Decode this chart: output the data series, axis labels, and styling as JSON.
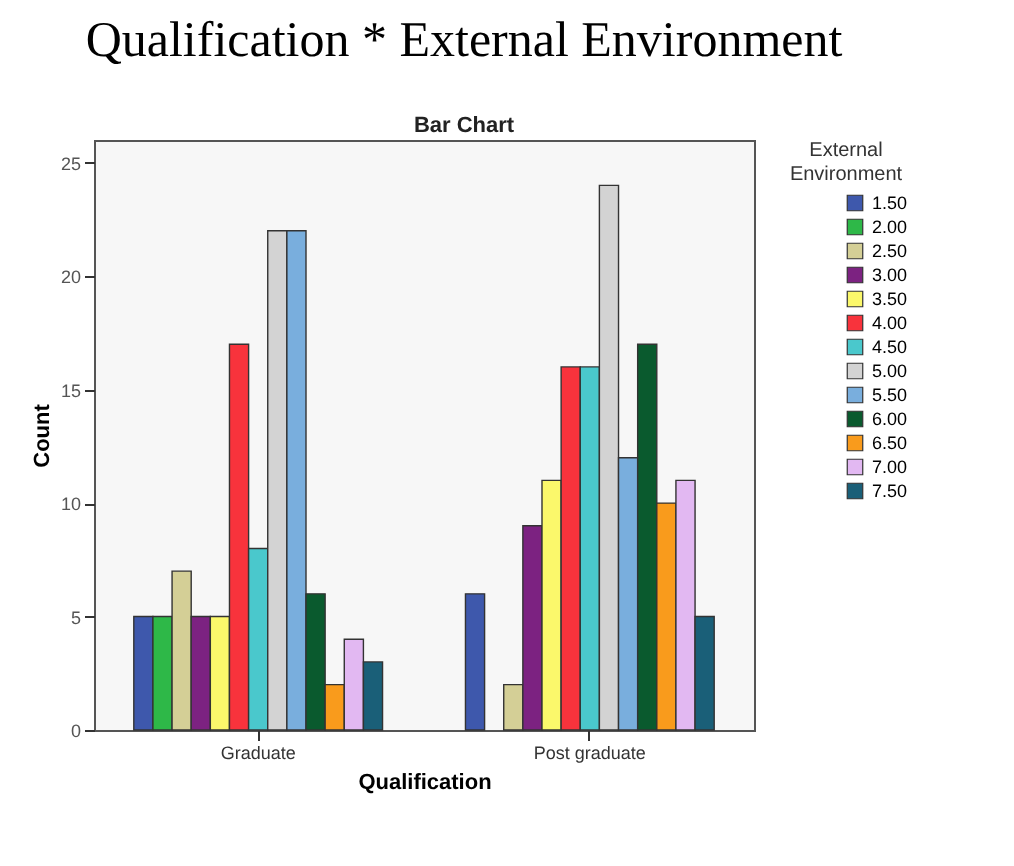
{
  "chart_data": {
    "type": "bar",
    "title": "Qualification  * External  Environment",
    "subtitle": "Bar Chart",
    "xlabel": "Qualification",
    "ylabel": "Count",
    "legend_title": "External Environment",
    "categories": [
      "Graduate",
      "Post graduate"
    ],
    "series": [
      {
        "name": "1.50",
        "color": "#3e58ac",
        "values": [
          5,
          6
        ]
      },
      {
        "name": "2.00",
        "color": "#2eb848",
        "values": [
          5,
          null
        ]
      },
      {
        "name": "2.50",
        "color": "#d4cf96",
        "values": [
          7,
          2
        ]
      },
      {
        "name": "3.00",
        "color": "#7c2281",
        "values": [
          5,
          9
        ]
      },
      {
        "name": "3.50",
        "color": "#fbf86b",
        "values": [
          5,
          11
        ]
      },
      {
        "name": "4.00",
        "color": "#f8333c",
        "values": [
          17,
          16
        ]
      },
      {
        "name": "4.50",
        "color": "#4ac8cc",
        "values": [
          8,
          16
        ]
      },
      {
        "name": "5.00",
        "color": "#d3d3d3",
        "values": [
          22,
          24
        ]
      },
      {
        "name": "5.50",
        "color": "#79aedd",
        "values": [
          22,
          12
        ]
      },
      {
        "name": "6.00",
        "color": "#0a5a2e",
        "values": [
          6,
          17
        ]
      },
      {
        "name": "6.50",
        "color": "#f99b1c",
        "values": [
          2,
          10
        ]
      },
      {
        "name": "7.00",
        "color": "#e2b8f2",
        "values": [
          4,
          11
        ]
      },
      {
        "name": "7.50",
        "color": "#1a5f78",
        "values": [
          3,
          5
        ]
      }
    ],
    "ylim": [
      0,
      26
    ],
    "yticks": [
      0,
      5,
      10,
      15,
      20,
      25
    ],
    "legend": "top right"
  }
}
